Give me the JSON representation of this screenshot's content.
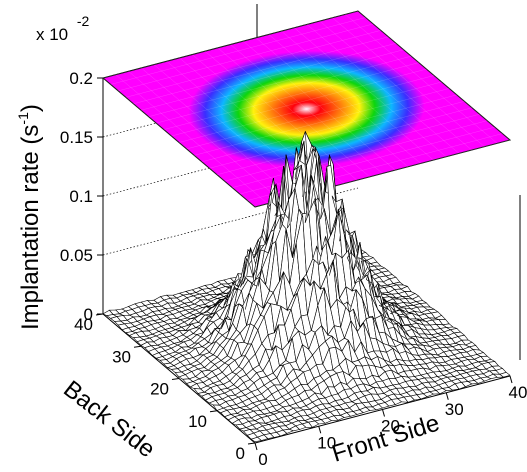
{
  "chart_data": {
    "type": "surface3d",
    "title": "",
    "zlabel": "Implantation rate (s",
    "zlabel_sup": "-1",
    "zlabel_close": ")",
    "xlabel": "Front Side",
    "ylabel": "Back Side",
    "z_multiplier_prefix": "x 10",
    "z_multiplier_exponent": "-2",
    "z_ticks": [
      "0",
      "0.05",
      "0.1",
      "0.15",
      "0.2"
    ],
    "z_tick_values": [
      0,
      0.05,
      0.1,
      0.15,
      0.2
    ],
    "zlim": [
      0,
      0.2
    ],
    "x_ticks": [
      "0",
      "10",
      "20",
      "30",
      "40"
    ],
    "x_tick_values": [
      0,
      10,
      20,
      30,
      40
    ],
    "xlim": [
      0,
      40
    ],
    "y_ticks": [
      "0",
      "10",
      "20",
      "30",
      "40"
    ],
    "y_tick_values": [
      0,
      10,
      20,
      30,
      40
    ],
    "ylim": [
      0,
      40
    ],
    "distribution": {
      "shape": "gaussian",
      "center_x": 20,
      "center_y": 20,
      "sigma": 6,
      "peak": 0.15
    },
    "projection": "color contour on top plane",
    "grid": true,
    "colors": {
      "mesh_line": "#000000",
      "mesh_fill": "#ffffff",
      "contour_background": "#ff00ff",
      "grid_line": "#000000"
    }
  }
}
